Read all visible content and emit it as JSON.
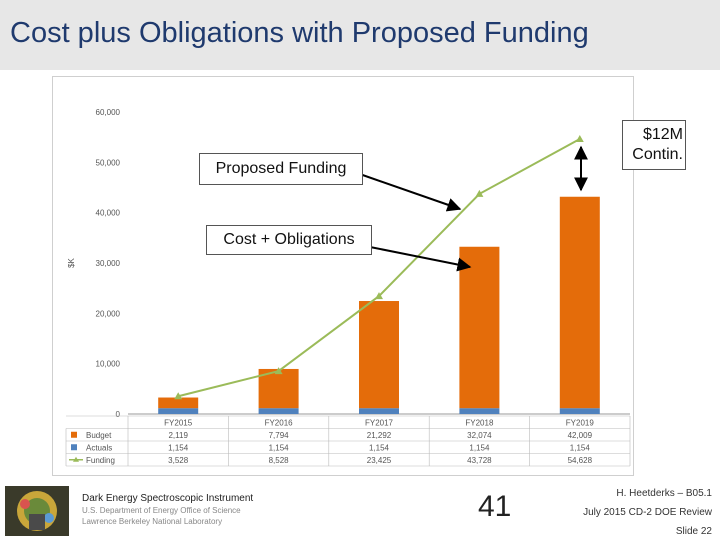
{
  "title": "Cost plus Obligations with Proposed Funding",
  "callouts": {
    "proposed_funding": "Proposed Funding",
    "cost_obligations": "Cost + Obligations",
    "contingency_line1": "$12M",
    "contingency_line2": "Contin."
  },
  "footer": {
    "org_title": "Dark Energy Spectroscopic Instrument",
    "org_sub1": "U.S. Department of Energy Office of Science",
    "org_sub2": "Lawrence Berkeley National Laboratory",
    "page_number": "41",
    "presenter": "H. Heetderks – B05.1",
    "review": "July 2015 CD-2 DOE Review",
    "slide": "Slide 22"
  },
  "colors": {
    "budget": "#e46c0a",
    "actuals": "#4f81bd",
    "funding": "#9bbb59"
  },
  "chart_data": {
    "type": "bar",
    "categories": [
      "FY2015",
      "FY2016",
      "FY2017",
      "FY2018",
      "FY2019"
    ],
    "ylabel": "$K",
    "ylim": [
      0,
      60000
    ],
    "yticks": [
      "0",
      "10,000",
      "20,000",
      "30,000",
      "40,000",
      "50,000",
      "60,000"
    ],
    "grid": false,
    "series": [
      {
        "name": "Budget",
        "chart": "stacked-bar",
        "values": [
          2119,
          7794,
          21292,
          32074,
          42009
        ],
        "labels": [
          "2,119",
          "7,794",
          "21,292",
          "32,074",
          "42,009"
        ]
      },
      {
        "name": "Actuals",
        "chart": "stacked-bar",
        "values": [
          1154,
          1154,
          1154,
          1154,
          1154
        ],
        "labels": [
          "1,154",
          "1,154",
          "1,154",
          "1,154",
          "1,154"
        ]
      },
      {
        "name": "Funding",
        "chart": "line",
        "values": [
          3528,
          8528,
          23425,
          43728,
          54628
        ],
        "labels": [
          "3,528",
          "8,528",
          "23,425",
          "43,728",
          "54,628"
        ]
      }
    ]
  }
}
